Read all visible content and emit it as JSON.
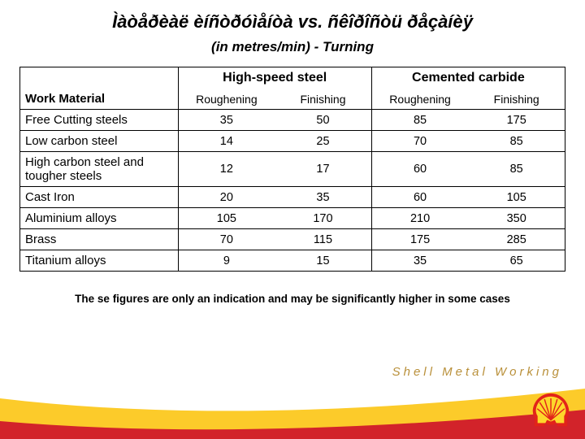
{
  "title": {
    "line1": "Ìàòåðèàë èíñòðóìåíòà vs. ñêîðîñòü ðåçàíèÿ",
    "line2": "(in metres/min)  - Turning"
  },
  "table": {
    "corner_label": "Work Material",
    "groups": [
      "High-speed steel",
      "Cemented carbide"
    ],
    "sub_headers": [
      "Roughening",
      "Finishing",
      "Roughening",
      "Finishing"
    ],
    "rows": [
      {
        "label": "Free Cutting steels",
        "values": [
          "35",
          "50",
          "85",
          "175"
        ]
      },
      {
        "label": "Low carbon steel",
        "values": [
          "14",
          "25",
          "70",
          "85"
        ]
      },
      {
        "label": "High carbon steel and tougher steels",
        "values": [
          "12",
          "17",
          "60",
          "85"
        ]
      },
      {
        "label": "Cast Iron",
        "values": [
          "20",
          "35",
          "60",
          "105"
        ]
      },
      {
        "label": "Aluminium alloys",
        "values": [
          "105",
          "170",
          "210",
          "350"
        ]
      },
      {
        "label": "Brass",
        "values": [
          "70",
          "115",
          "175",
          "285"
        ]
      },
      {
        "label": "Titanium alloys",
        "values": [
          "9",
          "15",
          "35",
          "65"
        ]
      }
    ]
  },
  "footnote": "The se figures are only an indication and may be significantly higher in some cases",
  "brand_text": "Shell Metal Working",
  "colors": {
    "band_yellow": "#fccb2a",
    "band_red": "#d2232a",
    "brand_text": "#b9903a",
    "logo_red": "#e2231a",
    "logo_yellow": "#fdd72b"
  },
  "column_widths": [
    "29%",
    "17.75%",
    "17.75%",
    "17.75%",
    "17.75%"
  ]
}
